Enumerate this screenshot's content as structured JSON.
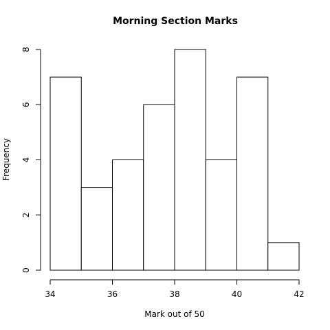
{
  "chart_data": {
    "type": "bar",
    "title": "Morning Section Marks",
    "xlabel": "Mark out of 50",
    "ylabel": "Frequency",
    "bins": [
      {
        "start": 34,
        "end": 35,
        "count": 7
      },
      {
        "start": 35,
        "end": 36,
        "count": 3
      },
      {
        "start": 36,
        "end": 37,
        "count": 4
      },
      {
        "start": 37,
        "end": 38,
        "count": 6
      },
      {
        "start": 38,
        "end": 39,
        "count": 8
      },
      {
        "start": 39,
        "end": 40,
        "count": 4
      },
      {
        "start": 40,
        "end": 41,
        "count": 7
      },
      {
        "start": 41,
        "end": 42,
        "count": 1
      }
    ],
    "xlim": [
      34,
      42
    ],
    "ylim": [
      0,
      8
    ],
    "xticks": [
      34,
      36,
      38,
      40,
      42
    ],
    "yticks": [
      0,
      2,
      4,
      6,
      8
    ],
    "grid": false,
    "bar_fill": "#ffffff",
    "bar_stroke": "#000000"
  }
}
